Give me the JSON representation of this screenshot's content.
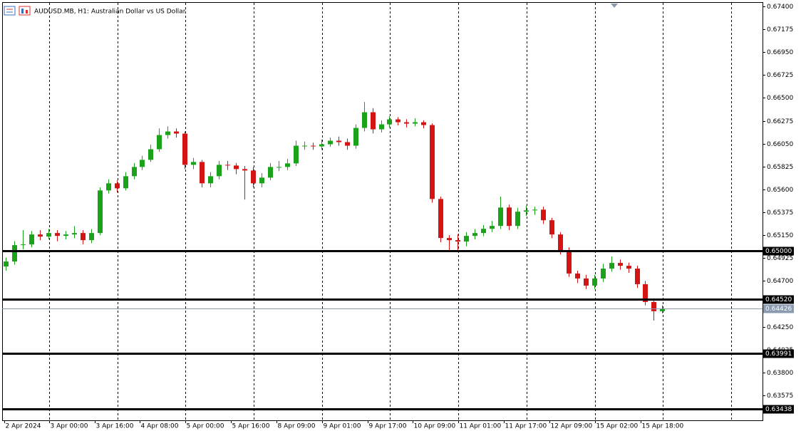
{
  "chart_data": {
    "type": "candlestick",
    "title": "AUDUSD.MB, H1:  Australian Dollar vs US Dollar",
    "up_color": "#1aa31a",
    "down_color": "#d41414",
    "grid": true,
    "open": [
      0.64842,
      0.64891,
      0.65052,
      0.65059,
      0.65157,
      0.65136,
      0.65171,
      0.65143,
      0.65157,
      0.65171,
      0.65101,
      0.65171,
      0.6559,
      0.6566,
      0.65611,
      0.6573,
      0.65821,
      0.65891,
      0.65995,
      0.66135,
      0.6617,
      0.66149,
      0.65842,
      0.6587,
      0.6566,
      0.6573,
      0.65842,
      0.65835,
      0.658,
      0.65786,
      0.6566,
      0.65716,
      0.65821,
      0.65821,
      0.65856,
      0.6603,
      0.6603,
      0.66023,
      0.66044,
      0.66079,
      0.66065,
      0.6603,
      0.66205,
      0.66359,
      0.66191,
      0.6624,
      0.66289,
      0.66261,
      0.66247,
      0.66261,
      0.66233,
      0.65506,
      0.65122,
      0.65101,
      0.65087,
      0.65143,
      0.65171,
      0.65213,
      0.65241,
      0.65422,
      0.65241,
      0.65381,
      0.65394,
      0.65401,
      0.65297,
      0.65157,
      0.65003,
      0.64773,
      0.64724,
      0.64654,
      0.64724,
      0.64821,
      0.64877,
      0.64849,
      0.64821,
      0.64668,
      0.64493,
      0.64402
    ],
    "high": [
      0.6493,
      0.6509,
      0.652,
      0.6519,
      0.652,
      0.6521,
      0.652,
      0.6519,
      0.6524,
      0.652,
      0.6521,
      0.6562,
      0.657,
      0.6569,
      0.6577,
      0.6586,
      0.6593,
      0.6604,
      0.662,
      0.6622,
      0.662,
      0.6617,
      0.6591,
      0.6589,
      0.6577,
      0.6588,
      0.6588,
      0.6586,
      0.6583,
      0.6582,
      0.6576,
      0.6586,
      0.6588,
      0.659,
      0.6608,
      0.6607,
      0.6606,
      0.6609,
      0.6611,
      0.6612,
      0.661,
      0.6624,
      0.6646,
      0.664,
      0.6628,
      0.6632,
      0.6631,
      0.6629,
      0.663,
      0.6628,
      0.6625,
      0.6553,
      0.6515,
      0.6516,
      0.6518,
      0.6521,
      0.6525,
      0.6529,
      0.6553,
      0.6545,
      0.6542,
      0.6544,
      0.6543,
      0.6543,
      0.6532,
      0.6518,
      0.6503,
      0.648,
      0.6476,
      0.6476,
      0.6487,
      0.6494,
      0.6491,
      0.6488,
      0.6485,
      0.647,
      0.6452,
      0.6446
    ],
    "low": [
      0.648,
      0.6486,
      0.6501,
      0.6503,
      0.651,
      0.6511,
      0.6509,
      0.6511,
      0.6512,
      0.6506,
      0.6507,
      0.6515,
      0.6556,
      0.6557,
      0.6559,
      0.657,
      0.6579,
      0.6587,
      0.6597,
      0.661,
      0.6611,
      0.658,
      0.658,
      0.6562,
      0.6562,
      0.657,
      0.6579,
      0.6575,
      0.655,
      0.6562,
      0.6562,
      0.6569,
      0.6578,
      0.6579,
      0.6583,
      0.6599,
      0.6599,
      0.6599,
      0.6602,
      0.6603,
      0.6599,
      0.66,
      0.6617,
      0.6615,
      0.6616,
      0.6621,
      0.6623,
      0.6621,
      0.6622,
      0.662,
      0.6547,
      0.6508,
      0.6499,
      0.6499,
      0.6504,
      0.6511,
      0.6514,
      0.6518,
      0.6521,
      0.652,
      0.6521,
      0.6534,
      0.6535,
      0.6526,
      0.6512,
      0.6496,
      0.6474,
      0.6468,
      0.6462,
      0.6462,
      0.6469,
      0.6479,
      0.6481,
      0.6478,
      0.6463,
      0.6446,
      0.6431,
      0.6438
    ],
    "close": [
      0.64891,
      0.65052,
      0.65059,
      0.65157,
      0.65136,
      0.65171,
      0.65143,
      0.65157,
      0.65171,
      0.65101,
      0.65171,
      0.6559,
      0.6566,
      0.65611,
      0.6573,
      0.65821,
      0.65891,
      0.65995,
      0.66135,
      0.6617,
      0.66149,
      0.65842,
      0.6587,
      0.6566,
      0.6573,
      0.65842,
      0.65835,
      0.658,
      0.65786,
      0.6566,
      0.65716,
      0.65821,
      0.65821,
      0.65856,
      0.6603,
      0.6603,
      0.66023,
      0.66044,
      0.66079,
      0.66065,
      0.6603,
      0.66205,
      0.66359,
      0.66191,
      0.6624,
      0.66289,
      0.66261,
      0.66247,
      0.66261,
      0.66233,
      0.65506,
      0.65122,
      0.65101,
      0.65087,
      0.65143,
      0.65171,
      0.65213,
      0.65241,
      0.65422,
      0.65241,
      0.65381,
      0.65394,
      0.65401,
      0.65297,
      0.65157,
      0.65003,
      0.64773,
      0.64724,
      0.64654,
      0.64724,
      0.64821,
      0.64877,
      0.64849,
      0.64821,
      0.64668,
      0.64493,
      0.64402,
      0.64426
    ],
    "ylim": [
      0.63329,
      0.67435
    ],
    "yticks": [
      {
        "value": 0.674,
        "label": "0.67400"
      },
      {
        "value": 0.67175,
        "label": "0.67175"
      },
      {
        "value": 0.6695,
        "label": "0.66950"
      },
      {
        "value": 0.66725,
        "label": "0.66725"
      },
      {
        "value": 0.665,
        "label": "0.66500"
      },
      {
        "value": 0.66275,
        "label": "0.66275"
      },
      {
        "value": 0.6605,
        "label": "0.66050"
      },
      {
        "value": 0.65825,
        "label": "0.65825"
      },
      {
        "value": 0.656,
        "label": "0.65600"
      },
      {
        "value": 0.65375,
        "label": "0.65375"
      },
      {
        "value": 0.6515,
        "label": "0.65150"
      },
      {
        "value": 0.64925,
        "label": "0.64925"
      },
      {
        "value": 0.647,
        "label": "0.64700"
      },
      {
        "value": 0.6425,
        "label": "0.64250"
      },
      {
        "value": 0.64025,
        "label": "0.64025"
      },
      {
        "value": 0.638,
        "label": "0.63800"
      },
      {
        "value": 0.63575,
        "label": "0.63575"
      }
    ],
    "xlim": [
      -0.42,
      88.75
    ],
    "xticks": [
      {
        "value": -0.17,
        "label": "2 Apr 2024"
      },
      {
        "value": 5.08,
        "label": "3 Apr 00:00"
      },
      {
        "value": 10.42,
        "label": "3 Apr 16:00"
      },
      {
        "value": 15.75,
        "label": "4 Apr 08:00"
      },
      {
        "value": 21.08,
        "label": "5 Apr 00:00"
      },
      {
        "value": 26.42,
        "label": "5 Apr 16:00"
      },
      {
        "value": 31.75,
        "label": "8 Apr 09:00"
      },
      {
        "value": 37.08,
        "label": "9 Apr 01:00"
      },
      {
        "value": 42.42,
        "label": "9 Apr 17:00"
      },
      {
        "value": 47.75,
        "label": "10 Apr 09:00"
      },
      {
        "value": 53.08,
        "label": "11 Apr 01:00"
      },
      {
        "value": 58.42,
        "label": "11 Apr 17:00"
      },
      {
        "value": 63.75,
        "label": "12 Apr 09:00"
      },
      {
        "value": 69.08,
        "label": "15 Apr 02:00"
      },
      {
        "value": 74.42,
        "label": "15 Apr 18:00"
      }
    ],
    "xgrid": [
      5.08,
      13.08,
      21.08,
      29.08,
      37.08,
      45.08,
      53.08,
      61.08,
      69.08,
      77.08,
      85.08
    ],
    "levels": [
      {
        "value": 0.65,
        "label": "0.65000"
      },
      {
        "value": 0.6452,
        "label": "0.64520"
      },
      {
        "value": 0.63991,
        "label": "0.63991"
      },
      {
        "value": 0.63438,
        "label": "0.63438"
      }
    ],
    "level_color": "#000000",
    "current_price": {
      "value": 0.64426,
      "label": "0.64426"
    },
    "current_color": "#8a9bb0"
  }
}
